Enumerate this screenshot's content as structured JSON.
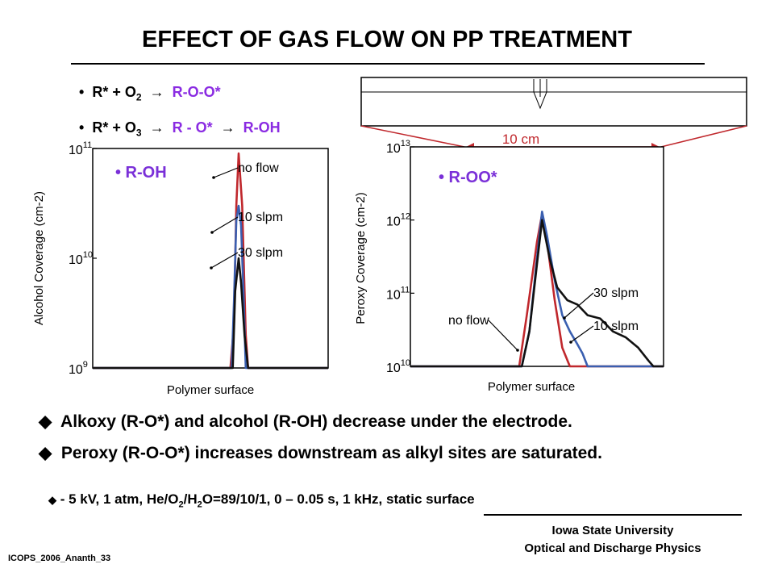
{
  "slide": {
    "title": "EFFECT OF GAS FLOW ON PP TREATMENT",
    "reactions": [
      {
        "bullet": "•",
        "left": "R* + O",
        "left_sub": "2",
        "arrow": "",
        "right": "R-O-O*"
      },
      {
        "bullet": "•",
        "left": "R* + O",
        "left_sub": "3",
        "arrow1": "",
        "mid": "R - O*",
        "arrow2": "",
        "right": "R-OH"
      }
    ],
    "schematic_label": "10 cm",
    "findings": [
      {
        "bullet": "",
        "text": "Alkoxy (R-O*) and alcohol (R-OH) decrease under the electrode."
      },
      {
        "bullet": "",
        "text": "Peroxy (R-O-O*) increases downstream as alkyl sites are saturated."
      }
    ],
    "conditions": {
      "bullet": "",
      "part1": " - 5 kV, 1 atm,  He/O",
      "sub1": "2",
      "part2": "/H",
      "sub2": "2",
      "part3": "O=89/10/1, 0 – 0.05 s, 1 kHz, static surface"
    },
    "affiliation_line1": "Iowa State University",
    "affiliation_line2": "Optical and Discharge Physics",
    "footer_id": "ICOPS_2006_Ananth_33"
  },
  "chart_data": [
    {
      "type": "line",
      "inset_label": "• R-OH",
      "xlabel": "Polymer surface",
      "ylabel": "Alcohol Coverage (cm-2)",
      "yscale": "log",
      "ylim": [
        1000000000.0,
        100000000000.0
      ],
      "y_ticks": [
        {
          "base": "10",
          "exp": "9"
        },
        {
          "base": "10",
          "exp": "10"
        },
        {
          "base": "10",
          "exp": "11"
        }
      ],
      "x_domain": [
        0,
        1
      ],
      "series": [
        {
          "name": "no flow",
          "color": "#c0282d",
          "x": [
            0.0,
            0.56,
            0.585,
            0.6,
            0.61,
            0.62,
            0.635,
            0.65,
            0.66,
            0.68,
            0.72,
            1.0
          ],
          "y": [
            1000000000.0,
            1000000000.0,
            1000000000.0,
            2500000000.0,
            30000000000.0,
            90000000000.0,
            30000000000.0,
            2000000000.0,
            1000000000.0,
            1000000000.0,
            1000000000.0,
            1000000000.0
          ]
        },
        {
          "name": "10 slpm",
          "color": "#3a5fb0",
          "x": [
            0.0,
            0.57,
            0.59,
            0.6,
            0.61,
            0.62,
            0.63,
            0.64,
            0.65,
            0.68,
            1.0
          ],
          "y": [
            1000000000.0,
            1000000000.0,
            1000000000.0,
            4000000000.0,
            22000000000.0,
            30000000000.0,
            20000000000.0,
            5000000000.0,
            1000000000.0,
            1000000000.0,
            1000000000.0
          ]
        },
        {
          "name": "30 slpm",
          "color": "#111111",
          "x": [
            0.0,
            0.57,
            0.595,
            0.605,
            0.615,
            0.62,
            0.63,
            0.645,
            0.66,
            1.0
          ],
          "y": [
            1000000000.0,
            1000000000.0,
            1000000000.0,
            5000000000.0,
            8000000000.0,
            10000000000.0,
            6000000000.0,
            2000000000.0,
            1000000000.0,
            1000000000.0
          ]
        }
      ],
      "annotations": [
        {
          "text": "no flow",
          "series": "no flow"
        },
        {
          "text": "10 slpm",
          "series": "10 slpm"
        },
        {
          "text": "30 slpm",
          "series": "30 slpm"
        }
      ]
    },
    {
      "type": "line",
      "inset_label": "• R-OO*",
      "xlabel": "Polymer surface",
      "ylabel": "Peroxy Coverage (cm-2)",
      "yscale": "log",
      "ylim": [
        10000000000.0,
        10000000000000.0
      ],
      "y_ticks": [
        {
          "base": "10",
          "exp": "10"
        },
        {
          "base": "10",
          "exp": "11"
        },
        {
          "base": "10",
          "exp": "12"
        },
        {
          "base": "10",
          "exp": "13"
        }
      ],
      "x_domain": [
        0,
        1
      ],
      "series": [
        {
          "name": "no flow",
          "color": "#c0282d",
          "x": [
            0.0,
            0.4,
            0.43,
            0.46,
            0.5,
            0.52,
            0.54,
            0.57,
            0.6,
            0.63,
            0.66,
            1.0
          ],
          "y": [
            10000000000.0,
            10000000000.0,
            10000000000.0,
            50000000000.0,
            500000000000.0,
            1200000000000.0,
            500000000000.0,
            80000000000.0,
            18000000000.0,
            10000000000.0,
            10000000000.0,
            10000000000.0
          ]
        },
        {
          "name": "10 slpm",
          "color": "#3a5fb0",
          "x": [
            0.0,
            0.44,
            0.47,
            0.5,
            0.52,
            0.54,
            0.57,
            0.6,
            0.63,
            0.66,
            0.68,
            0.7,
            0.72,
            1.0
          ],
          "y": [
            10000000000.0,
            10000000000.0,
            30000000000.0,
            300000000000.0,
            1300000000000.0,
            600000000000.0,
            150000000000.0,
            50000000000.0,
            30000000000.0,
            20000000000.0,
            15000000000.0,
            10000000000.0,
            10000000000.0,
            10000000000.0
          ]
        },
        {
          "name": "30 slpm",
          "color": "#111111",
          "x": [
            0.0,
            0.44,
            0.47,
            0.5,
            0.52,
            0.55,
            0.58,
            0.62,
            0.66,
            0.7,
            0.75,
            0.8,
            0.85,
            0.9,
            0.94,
            0.96,
            1.0
          ],
          "y": [
            10000000000.0,
            10000000000.0,
            30000000000.0,
            250000000000.0,
            1000000000000.0,
            300000000000.0,
            120000000000.0,
            80000000000.0,
            70000000000.0,
            50000000000.0,
            45000000000.0,
            30000000000.0,
            25000000000.0,
            18000000000.0,
            12000000000.0,
            10000000000.0,
            10000000000.0
          ]
        }
      ],
      "annotations": [
        {
          "text": "no flow",
          "series": "no flow"
        },
        {
          "text": "10 slpm",
          "series": "10 slpm"
        },
        {
          "text": "30 slpm",
          "series": "30 slpm"
        }
      ]
    }
  ]
}
